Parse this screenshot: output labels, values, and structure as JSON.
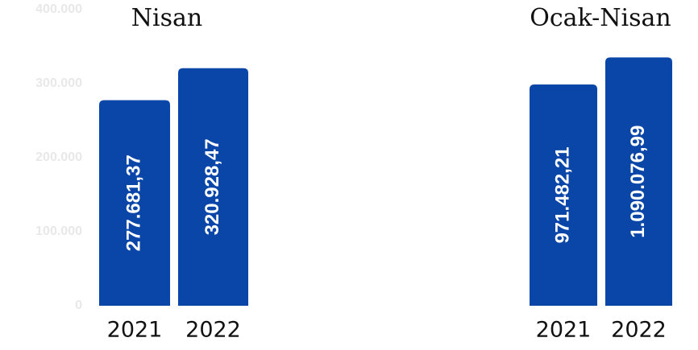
{
  "chart_data": [
    {
      "type": "bar",
      "title": "Nisan",
      "categories": [
        "2021",
        "2022"
      ],
      "values": [
        277681.37,
        320928.47
      ],
      "value_labels": [
        "277.681,37",
        "320.928,47"
      ],
      "color": "#0a46a8",
      "ylim": [
        0,
        400000
      ],
      "yticks": [
        0,
        {
          "value": 100000,
          "label": "100.000"
        },
        {
          "value": 200000,
          "label": "200.000"
        },
        {
          "value": 300000,
          "label": "300.000"
        },
        {
          "value": 400000,
          "label": "400.000"
        }
      ]
    },
    {
      "type": "bar",
      "title": "Ocak-Nisan",
      "categories": [
        "2021",
        "2022"
      ],
      "values": [
        971482.21,
        1090076.99
      ],
      "value_labels": [
        "971.482,21",
        "1.090.076,99"
      ],
      "color": "#0a46a8",
      "ylim": [
        0,
        1300000
      ]
    }
  ]
}
